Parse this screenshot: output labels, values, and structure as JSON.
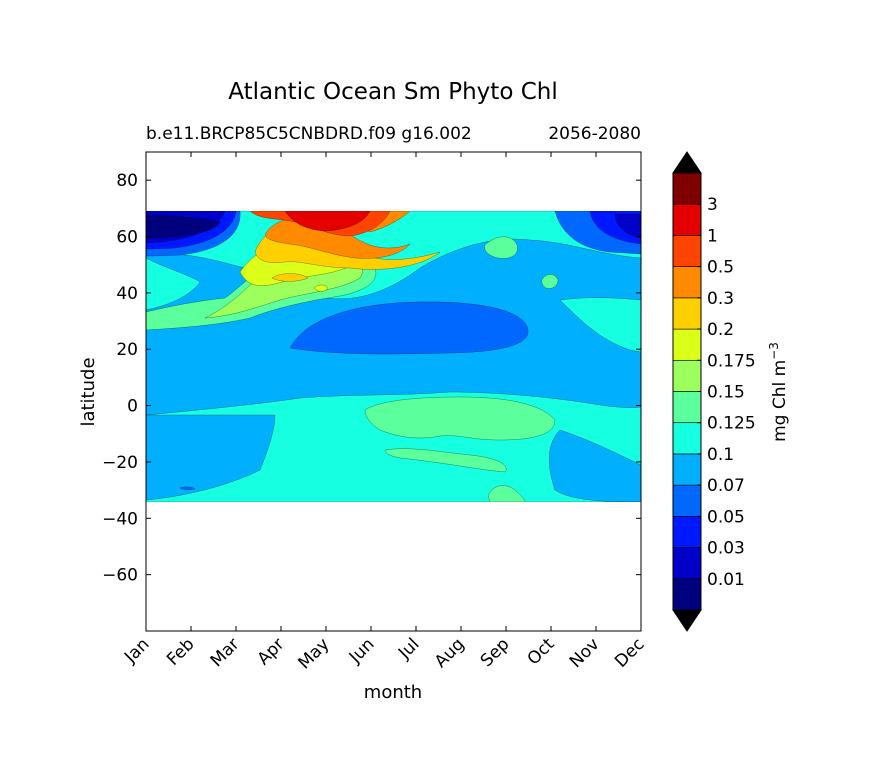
{
  "chart_data": {
    "type": "heatmap",
    "title": "Atlantic Ocean Sm Phyto Chl",
    "subtitle_left": "b.e11.BRCP85C5CNBDRD.f09 g16.002",
    "subtitle_right": "2056-2080",
    "xlabel": "month",
    "ylabel": "latitude",
    "x_ticks": [
      "Jan",
      "Feb",
      "Mar",
      "Apr",
      "May",
      "Jun",
      "Jul",
      "Aug",
      "Sep",
      "Oct",
      "Nov",
      "Dec"
    ],
    "y_ticks": [
      80,
      60,
      40,
      20,
      0,
      -20,
      -40,
      -60
    ],
    "y_tick_labels": [
      "80",
      "60",
      "40",
      "20",
      "0",
      "−20",
      "−40",
      "−60"
    ],
    "ylim": [
      -80,
      90
    ],
    "data_lat_range": [
      -34,
      69
    ],
    "colorbar": {
      "label": "mg Chl m",
      "label_exponent": "−3",
      "levels": [
        "0.01",
        "0.03",
        "0.05",
        "0.07",
        "0.1",
        "0.125",
        "0.15",
        "0.175",
        "0.2",
        "0.3",
        "0.5",
        "1",
        "3"
      ],
      "colors": [
        "#00007f",
        "#0000c8",
        "#0018ff",
        "#0068ff",
        "#00b0ff",
        "#16ffe0",
        "#5bff9b",
        "#9cff5b",
        "#dcff1a",
        "#ffd000",
        "#ff8a00",
        "#ff4300",
        "#e50000",
        "#7f0000"
      ],
      "extend": "both",
      "extension_color": "#000000"
    },
    "field_notes": [
      {
        "region": "North Atlantic 60-69N Jan-Feb and Nov-Dec",
        "level": "0.01-0.07"
      },
      {
        "region": "North Atlantic spring bloom 45-69N Apr-Jul",
        "level": "0.2-3"
      },
      {
        "region": "Subtropical gyre 15-35N May-Sep",
        "level": "0.07-0.1"
      },
      {
        "region": "Equatorial -10 to 5N Jun-Oct",
        "level": "0.125-0.15"
      },
      {
        "region": "Southern subtropics -34 to -10 Oct-Dec",
        "level": "0.1"
      }
    ]
  }
}
